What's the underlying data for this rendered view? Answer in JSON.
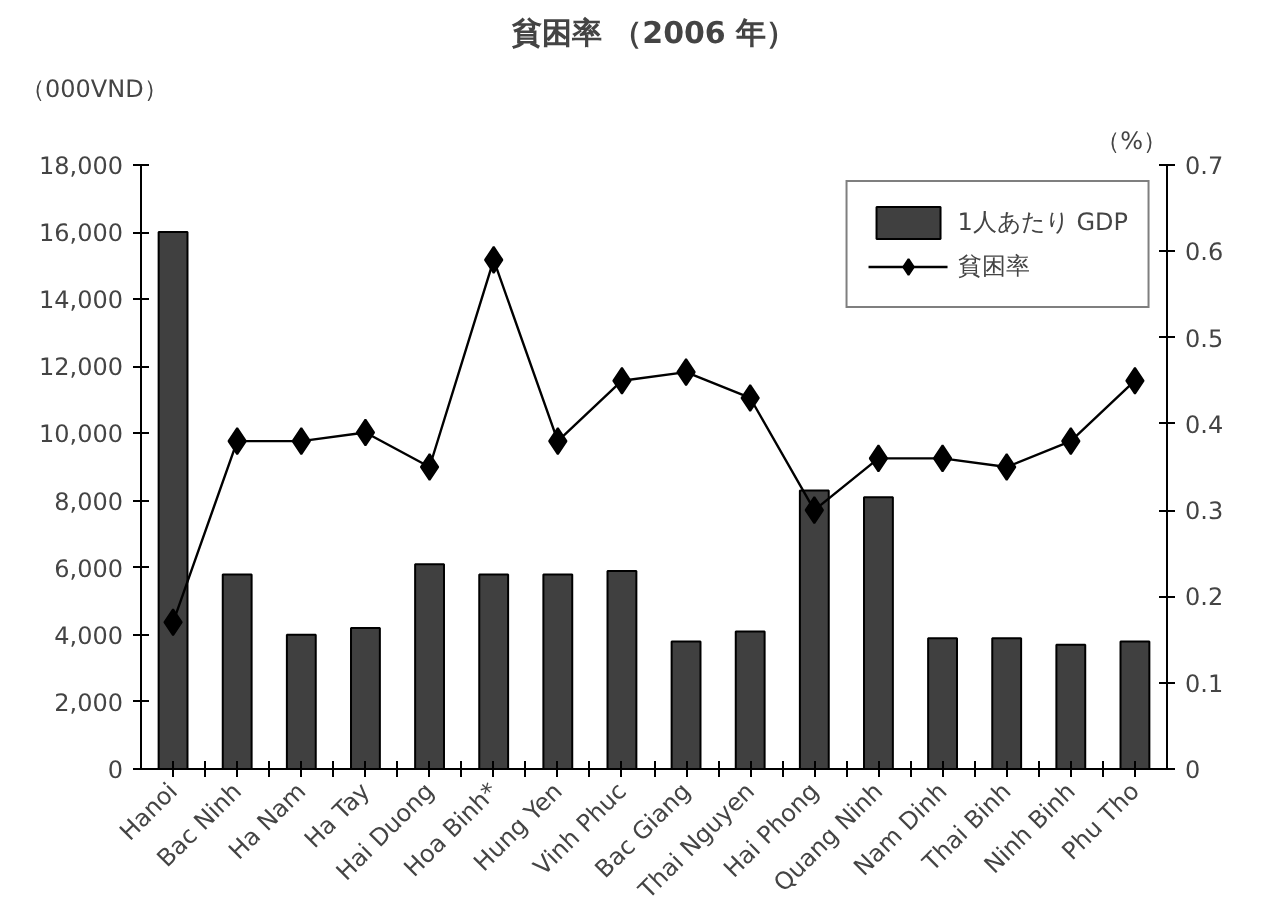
{
  "chart_data": {
    "type": "bar",
    "title": "貧困率 （2006 年）",
    "ylabel": "（000VND）",
    "y2label": "（%）",
    "categories": [
      "Hanoi",
      "Bac Ninh",
      "Ha Nam",
      "Ha Tay",
      "Hai Duong",
      "Hoa Binh*",
      "Hung Yen",
      "Vinh Phuc",
      "Bac Giang",
      "Thai Nguyen",
      "Hai Phong",
      "Quang Ninh",
      "Nam Dinh",
      "Thai Binh",
      "Ninh Binh",
      "Phu Tho"
    ],
    "series": [
      {
        "name": "1人あたり GDP",
        "color": "#404040",
        "values": [
          16000,
          5800,
          4000,
          4200,
          6100,
          5800,
          5800,
          5900,
          3800,
          4100,
          8300,
          8100,
          3900,
          3900,
          3700,
          3800
        ]
      },
      {
        "name": "貧困率",
        "type": "line",
        "axis": "y2",
        "color": "#000000",
        "marker": "diamond",
        "values": [
          0.17,
          0.38,
          0.38,
          0.39,
          0.35,
          0.59,
          0.38,
          0.45,
          0.46,
          0.43,
          0.3,
          0.36,
          0.36,
          0.35,
          0.38,
          0.45
        ]
      }
    ],
    "ylim": [
      0,
      18000
    ],
    "yticks": [
      0,
      {
        "value": 2000,
        "label": "2,000"
      },
      {
        "value": 4000,
        "label": "4,000"
      },
      {
        "value": 6000,
        "label": "6,000"
      },
      {
        "value": 8000,
        "label": "8,000"
      },
      {
        "value": 10000,
        "label": "10,000"
      },
      {
        "value": 12000,
        "label": "12,000"
      },
      {
        "value": 14000,
        "label": "14,000"
      },
      {
        "value": 16000,
        "label": "16,000"
      },
      {
        "value": 18000,
        "label": "18,000"
      }
    ],
    "y2lim": [
      0,
      0.7
    ],
    "y2ticks": [
      0,
      0.1,
      0.2,
      0.3,
      0.4,
      0.5,
      0.6,
      0.7
    ],
    "grid": false,
    "legend": "top right"
  }
}
